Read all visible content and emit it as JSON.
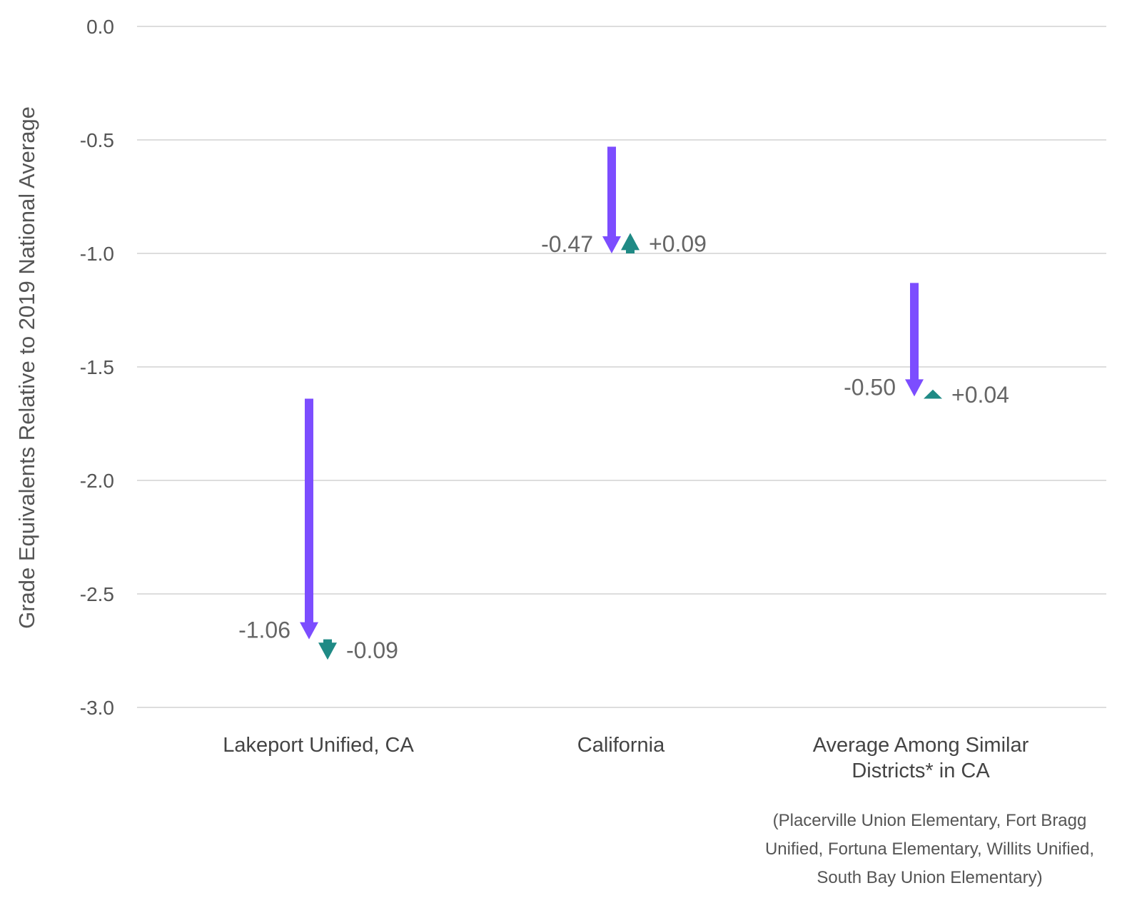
{
  "chart_data": {
    "type": "arrow",
    "ylabel": "Grade Equivalents Relative to 2019 National Average",
    "ylim": [
      -3.0,
      0.0
    ],
    "yticks": [
      0.0,
      -0.5,
      -1.0,
      -1.5,
      -2.0,
      -2.5,
      -3.0
    ],
    "ytick_labels": [
      "0.0",
      "-0.5",
      "-1.0",
      "-1.5",
      "-2.0",
      "-2.5",
      "-3.0"
    ],
    "grid": true,
    "categories": [
      [
        "Lakeport Unified, CA"
      ],
      [
        "California"
      ],
      [
        "Average Among Similar",
        "Districts* in CA"
      ]
    ],
    "series": [
      {
        "start": [
          -1.64,
          -0.53,
          -1.13
        ],
        "end": [
          -2.7,
          -1.0,
          -1.63
        ],
        "labels": [
          "-1.06",
          "-0.47",
          "-0.50"
        ],
        "color": "#7c4dff"
      },
      {
        "start": [
          -2.7,
          -1.0,
          -1.64
        ],
        "end": [
          -2.79,
          -0.91,
          -1.6
        ],
        "labels": [
          "-0.09",
          "+0.09",
          "+0.04"
        ],
        "color": "#1f8a85"
      }
    ],
    "footnote": [
      "(Placerville Union Elementary, Fort Bragg",
      "Unified, Fortuna Elementary, Willits Unified,",
      "South Bay Union Elementary)"
    ]
  }
}
